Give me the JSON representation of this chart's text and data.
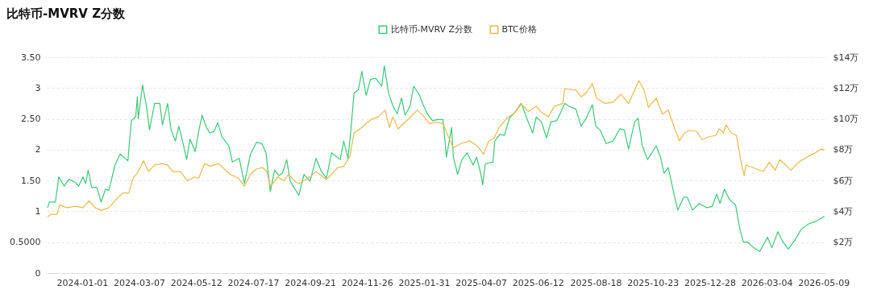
{
  "chart_data": {
    "type": "line",
    "title": "比特币-MVRV Z分数",
    "xlim": [
      "2023-11-21",
      "2026-05-12"
    ],
    "xticks": [
      "2024-01-01",
      "2024-03-07",
      "2024-05-12",
      "2024-07-17",
      "2024-09-21",
      "2024-11-26",
      "2025-01-31",
      "2025-04-07",
      "2025-06-12",
      "2025-08-18",
      "2025-10-23",
      "2025-12-28",
      "2026-03-04",
      "2026-05-09"
    ],
    "ylim": [
      0,
      3.5
    ],
    "yticks": [
      {
        "value": 0,
        "label": "0"
      },
      {
        "value": 0.5,
        "label": "0.5000"
      },
      {
        "value": 1,
        "label": "1"
      },
      {
        "value": 1.5,
        "label": "1.50"
      },
      {
        "value": 2,
        "label": "2"
      },
      {
        "value": 2.5,
        "label": "2.50"
      },
      {
        "value": 3,
        "label": "3"
      },
      {
        "value": 3.5,
        "label": "3.50"
      }
    ],
    "y2lim": [
      0,
      14
    ],
    "y2ticks": [
      {
        "value": 2,
        "label": "$2万"
      },
      {
        "value": 4,
        "label": "$4万"
      },
      {
        "value": 6,
        "label": "$6万"
      },
      {
        "value": 8,
        "label": "$8万"
      },
      {
        "value": 10,
        "label": "$10万"
      },
      {
        "value": 12,
        "label": "$12万"
      },
      {
        "value": 14,
        "label": "$14万"
      }
    ],
    "grid": "y",
    "legend": "top",
    "series": [
      {
        "name": "比特币-MVRV Z分数",
        "color": "#3cc878",
        "x": [
          "2023-11-22",
          "2023-11-24",
          "2023-12-01",
          "2023-12-05",
          "2023-12-11",
          "2023-12-17",
          "2023-12-24",
          "2023-12-28",
          "2024-01-02",
          "2024-01-05",
          "2024-01-08",
          "2024-01-12",
          "2024-01-18",
          "2024-01-23",
          "2024-01-28",
          "2024-02-01",
          "2024-02-08",
          "2024-02-14",
          "2024-02-23",
          "2024-02-27",
          "2024-03-03",
          "2024-03-05",
          "2024-03-06",
          "2024-03-11",
          "2024-03-16",
          "2024-03-19",
          "2024-03-25",
          "2024-03-31",
          "2024-04-03",
          "2024-04-09",
          "2024-04-13",
          "2024-04-18",
          "2024-04-22",
          "2024-04-27",
          "2024-05-01",
          "2024-05-05",
          "2024-05-11",
          "2024-05-15",
          "2024-05-19",
          "2024-05-24",
          "2024-05-28",
          "2024-06-02",
          "2024-06-06",
          "2024-06-11",
          "2024-06-19",
          "2024-06-23",
          "2024-07-01",
          "2024-07-07",
          "2024-07-14",
          "2024-07-21",
          "2024-07-27",
          "2024-08-01",
          "2024-08-06",
          "2024-08-11",
          "2024-08-16",
          "2024-08-20",
          "2024-08-25",
          "2024-08-29",
          "2024-09-08",
          "2024-09-14",
          "2024-09-21",
          "2024-09-28",
          "2024-10-04",
          "2024-10-10",
          "2024-10-16",
          "2024-10-26",
          "2024-10-30",
          "2024-11-04",
          "2024-11-07",
          "2024-11-11",
          "2024-11-16",
          "2024-11-20",
          "2024-11-25",
          "2024-11-30",
          "2024-12-06",
          "2024-12-13",
          "2024-12-16",
          "2024-12-21",
          "2024-12-26",
          "2024-12-31",
          "2025-01-05",
          "2025-01-09",
          "2025-01-15",
          "2025-01-19",
          "2025-01-26",
          "2025-01-30",
          "2025-02-04",
          "2025-02-10",
          "2025-02-16",
          "2025-02-22",
          "2025-02-26",
          "2025-03-04",
          "2025-03-06",
          "2025-03-11",
          "2025-03-16",
          "2025-03-22",
          "2025-03-29",
          "2025-04-02",
          "2025-04-07",
          "2025-04-09",
          "2025-04-12",
          "2025-04-21",
          "2025-04-23",
          "2025-04-29",
          "2025-05-04",
          "2025-05-10",
          "2025-05-16",
          "2025-05-24",
          "2025-05-30",
          "2025-06-06",
          "2025-06-10",
          "2025-06-16",
          "2025-06-22",
          "2025-06-27",
          "2025-07-04",
          "2025-07-13",
          "2025-07-20",
          "2025-07-26",
          "2025-08-01",
          "2025-08-07",
          "2025-08-14",
          "2025-08-18",
          "2025-08-23",
          "2025-08-30",
          "2025-09-07",
          "2025-09-15",
          "2025-09-20",
          "2025-09-25",
          "2025-10-02",
          "2025-10-06",
          "2025-10-11",
          "2025-10-17",
          "2025-10-27",
          "2025-11-01",
          "2025-11-05",
          "2025-11-10",
          "2025-11-17",
          "2025-11-21",
          "2025-11-28",
          "2025-12-02",
          "2025-12-08",
          "2025-12-16",
          "2025-12-24",
          "2025-12-31",
          "2026-01-05",
          "2026-01-09",
          "2026-01-14",
          "2026-01-20",
          "2026-01-27",
          "2026-02-01",
          "2026-02-05",
          "2026-02-10",
          "2026-02-17",
          "2026-02-24",
          "2026-03-05",
          "2026-03-10",
          "2026-03-17",
          "2026-03-23",
          "2026-03-29",
          "2026-04-06",
          "2026-04-13",
          "2026-04-22",
          "2026-04-30",
          "2026-05-10"
        ],
        "values": [
          1.06,
          1.15,
          1.15,
          1.56,
          1.41,
          1.52,
          1.47,
          1.41,
          1.56,
          1.45,
          1.67,
          1.39,
          1.39,
          1.15,
          1.36,
          1.34,
          1.75,
          1.93,
          1.82,
          2.47,
          2.53,
          2.86,
          2.5,
          3.05,
          2.66,
          2.32,
          2.75,
          2.75,
          2.4,
          2.75,
          2.32,
          2.14,
          2.38,
          2.1,
          1.84,
          2.17,
          1.97,
          2.3,
          2.56,
          2.36,
          2.27,
          2.3,
          2.44,
          2.21,
          2.06,
          1.8,
          1.86,
          1.45,
          1.93,
          2.12,
          2.1,
          1.95,
          1.32,
          1.67,
          1.58,
          1.62,
          1.84,
          1.49,
          1.26,
          1.6,
          1.49,
          1.86,
          1.65,
          1.54,
          1.95,
          1.84,
          2.14,
          1.86,
          2.27,
          2.92,
          2.97,
          3.27,
          2.88,
          3.14,
          3.16,
          3.03,
          3.36,
          2.92,
          2.71,
          2.58,
          2.84,
          2.56,
          2.71,
          3.03,
          2.88,
          2.73,
          2.58,
          2.47,
          2.49,
          2.49,
          1.88,
          2.36,
          1.88,
          1.6,
          1.84,
          1.95,
          1.75,
          1.88,
          1.6,
          1.43,
          1.77,
          1.8,
          2.14,
          2.25,
          2.23,
          2.51,
          2.6,
          2.75,
          2.51,
          2.27,
          2.53,
          2.45,
          2.19,
          2.45,
          2.47,
          2.75,
          2.69,
          2.66,
          2.38,
          2.51,
          2.73,
          2.38,
          2.32,
          2.1,
          2.14,
          2.34,
          2.32,
          2.01,
          2.45,
          2.51,
          2.06,
          1.84,
          2.06,
          1.88,
          1.62,
          1.71,
          1.26,
          1.02,
          1.23,
          1.23,
          1.02,
          1.13,
          1.06,
          1.08,
          1.28,
          1.13,
          1.36,
          1.19,
          1.1,
          0.71,
          0.5,
          0.5,
          0.41,
          0.35,
          0.58,
          0.41,
          0.67,
          0.5,
          0.39,
          0.54,
          0.71,
          0.8,
          0.84,
          0.92
        ]
      },
      {
        "name": "BTC价格",
        "color": "#e9b94e",
        "axis": "y2",
        "x": [
          "2023-11-22",
          "2023-11-26",
          "2023-12-03",
          "2023-12-06",
          "2023-12-14",
          "2023-12-24",
          "2024-01-02",
          "2024-01-09",
          "2024-01-16",
          "2024-01-23",
          "2024-02-01",
          "2024-02-09",
          "2024-02-17",
          "2024-02-24",
          "2024-02-29",
          "2024-03-06",
          "2024-03-12",
          "2024-03-18",
          "2024-03-25",
          "2024-04-03",
          "2024-04-09",
          "2024-04-15",
          "2024-04-24",
          "2024-05-02",
          "2024-05-10",
          "2024-05-15",
          "2024-05-22",
          "2024-05-28",
          "2024-06-07",
          "2024-06-12",
          "2024-06-20",
          "2024-06-30",
          "2024-07-07",
          "2024-07-14",
          "2024-07-21",
          "2024-07-28",
          "2024-08-02",
          "2024-08-06",
          "2024-08-15",
          "2024-08-22",
          "2024-08-27",
          "2024-09-03",
          "2024-09-08",
          "2024-09-19",
          "2024-09-28",
          "2024-10-10",
          "2024-10-23",
          "2024-10-30",
          "2024-11-06",
          "2024-11-11",
          "2024-11-20",
          "2024-11-25",
          "2024-12-01",
          "2024-12-09",
          "2024-12-17",
          "2024-12-22",
          "2024-12-26",
          "2025-01-01",
          "2025-01-09",
          "2025-01-14",
          "2025-01-23",
          "2025-01-30",
          "2025-02-06",
          "2025-02-15",
          "2025-02-22",
          "2025-03-01",
          "2025-03-06",
          "2025-03-15",
          "2025-03-25",
          "2025-04-03",
          "2025-04-10",
          "2025-04-16",
          "2025-04-22",
          "2025-04-28",
          "2025-05-07",
          "2025-05-16",
          "2025-05-23",
          "2025-06-01",
          "2025-06-10",
          "2025-06-15",
          "2025-06-24",
          "2025-07-01",
          "2025-07-11",
          "2025-07-13",
          "2025-07-26",
          "2025-08-01",
          "2025-08-07",
          "2025-08-14",
          "2025-08-19",
          "2025-08-29",
          "2025-09-07",
          "2025-09-16",
          "2025-09-25",
          "2025-10-02",
          "2025-10-07",
          "2025-10-13",
          "2025-10-18",
          "2025-10-27",
          "2025-11-03",
          "2025-11-10",
          "2025-11-17",
          "2025-11-23",
          "2025-11-29",
          "2025-12-05",
          "2025-12-13",
          "2025-12-19",
          "2025-12-26",
          "2026-01-04",
          "2026-01-08",
          "2026-01-13",
          "2026-01-16",
          "2026-01-22",
          "2026-01-28",
          "2026-02-03",
          "2026-02-06",
          "2026-02-08",
          "2026-02-20",
          "2026-02-28",
          "2026-03-07",
          "2026-03-14",
          "2026-03-19",
          "2026-03-26",
          "2026-04-01",
          "2026-04-10",
          "2026-04-20",
          "2026-04-29",
          "2026-05-06",
          "2026-05-10"
        ],
        "values": [
          3.64,
          3.81,
          3.81,
          4.42,
          4.24,
          4.33,
          4.24,
          4.68,
          4.24,
          4.07,
          4.24,
          4.76,
          5.19,
          5.19,
          6.15,
          6.58,
          7.27,
          6.58,
          7.01,
          7.1,
          7.01,
          6.58,
          6.58,
          5.97,
          6.23,
          6.15,
          7.1,
          6.93,
          7.1,
          6.84,
          6.41,
          6.15,
          5.63,
          6.41,
          6.75,
          6.84,
          6.58,
          5.63,
          6.23,
          5.97,
          6.41,
          5.97,
          5.8,
          6.15,
          6.58,
          6.06,
          6.84,
          6.93,
          7.53,
          9.09,
          9.44,
          9.7,
          9.96,
          10.13,
          10.56,
          9.44,
          10.13,
          9.35,
          9.78,
          10.04,
          10.56,
          10.22,
          9.7,
          9.78,
          9.7,
          8.74,
          8.14,
          8.4,
          8.57,
          8.23,
          7.71,
          8.57,
          8.74,
          9.44,
          10.04,
          10.39,
          11.0,
          10.48,
          10.82,
          10.48,
          10.13,
          10.82,
          11.0,
          11.95,
          11.86,
          11.43,
          11.69,
          12.29,
          11.34,
          11.0,
          11.08,
          11.6,
          11.0,
          11.86,
          12.47,
          11.86,
          10.74,
          11.34,
          10.3,
          10.56,
          9.44,
          8.57,
          9.09,
          9.26,
          9.18,
          8.66,
          8.83,
          8.92,
          9.35,
          9.09,
          9.61,
          9.09,
          8.92,
          7.01,
          6.32,
          7.01,
          6.75,
          6.58,
          7.19,
          6.67,
          7.36,
          7.01,
          6.67,
          7.19,
          7.53,
          7.79,
          8.05,
          7.97
        ]
      }
    ]
  }
}
